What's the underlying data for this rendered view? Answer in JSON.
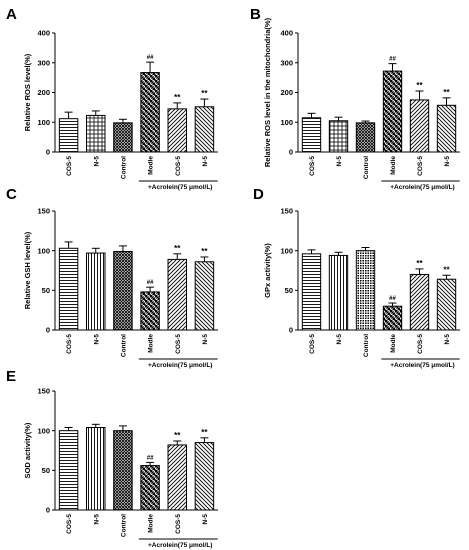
{
  "figure": {
    "group_label": "+Acrolein(75 μmol/L)"
  },
  "chart_data": [
    {
      "type": "bar",
      "panel": "A",
      "categories": [
        "COS-5",
        "N-5",
        "Control",
        "Modle",
        "COS-5",
        "N-5"
      ],
      "values": [
        112,
        123,
        98,
        267,
        145,
        152
      ],
      "errors": [
        22,
        15,
        12,
        35,
        20,
        26
      ],
      "significance": [
        "",
        "",
        "",
        "##",
        "**",
        "**"
      ],
      "patterns": [
        "hlines",
        "grid",
        "cross",
        "check",
        "diag-left",
        "diag-right"
      ],
      "ylabel": "Relative ROS level(%)",
      "ylim": [
        0,
        400
      ],
      "yticks": [
        0,
        100,
        200,
        300,
        400
      ],
      "bracket_from": 3,
      "bracket_to": 5
    },
    {
      "type": "bar",
      "panel": "B",
      "categories": [
        "COS-5",
        "N-5",
        "Control",
        "Modle",
        "COS-5",
        "N-5"
      ],
      "values": [
        115,
        105,
        98,
        272,
        175,
        157
      ],
      "errors": [
        15,
        12,
        6,
        25,
        30,
        25
      ],
      "significance": [
        "",
        "",
        "",
        "##",
        "**",
        "**"
      ],
      "patterns": [
        "hlines",
        "grid",
        "cross",
        "check",
        "diag-left",
        "diag-right"
      ],
      "ylabel": "Relative ROS level in the mitochondria(%)",
      "ylim": [
        0,
        400
      ],
      "yticks": [
        0,
        100,
        200,
        300,
        400
      ],
      "bracket_from": 3,
      "bracket_to": 5
    },
    {
      "type": "bar",
      "panel": "C",
      "categories": [
        "COS-5",
        "N-5",
        "Control",
        "Modle",
        "COS-5",
        "N-5"
      ],
      "values": [
        103,
        97,
        99,
        48,
        89,
        86
      ],
      "errors": [
        8,
        6,
        7,
        6,
        7,
        6
      ],
      "significance": [
        "",
        "",
        "",
        "##",
        "**",
        "**"
      ],
      "patterns": [
        "hlines",
        "vlines",
        "cross",
        "check",
        "diag-left",
        "diag-right"
      ],
      "ylabel": "Relative GSH level(%)",
      "ylim": [
        0,
        150
      ],
      "yticks": [
        0,
        50,
        100,
        150
      ],
      "bracket_from": 3,
      "bracket_to": 5
    },
    {
      "type": "bar",
      "panel": "D",
      "categories": [
        "COS-5",
        "N-5",
        "Control",
        "Modle",
        "COS-5",
        "N-5"
      ],
      "values": [
        96,
        94,
        100,
        30,
        70,
        64
      ],
      "errors": [
        5,
        4,
        4,
        4,
        7,
        5
      ],
      "significance": [
        "",
        "",
        "",
        "##",
        "**",
        "**"
      ],
      "patterns": [
        "hlines",
        "vlines",
        "dots",
        "check",
        "diag-left",
        "diag-right"
      ],
      "ylabel": "GPx activity(%)",
      "ylim": [
        0,
        150
      ],
      "yticks": [
        0,
        50,
        100,
        150
      ],
      "bracket_from": 3,
      "bracket_to": 5
    },
    {
      "type": "bar",
      "panel": "E",
      "categories": [
        "COS-5",
        "N-5",
        "Control",
        "Modle",
        "COS-5",
        "N-5"
      ],
      "values": [
        100,
        104,
        100,
        56,
        82,
        85
      ],
      "errors": [
        4,
        4,
        6,
        4,
        5,
        6
      ],
      "significance": [
        "",
        "",
        "",
        "##",
        "**",
        "**"
      ],
      "patterns": [
        "hlines",
        "vlines",
        "cross",
        "check",
        "diag-left",
        "diag-right"
      ],
      "ylabel": "SOD activity(%)",
      "ylim": [
        0,
        150
      ],
      "yticks": [
        0,
        50,
        100,
        150
      ],
      "bracket_from": 3,
      "bracket_to": 5
    }
  ]
}
